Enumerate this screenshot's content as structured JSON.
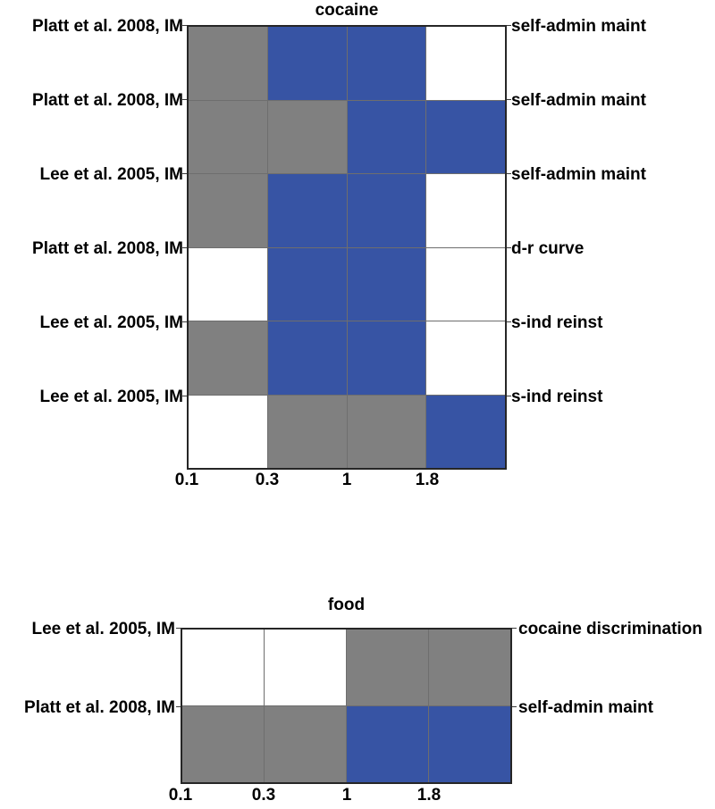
{
  "palette": {
    "white": "#ffffff",
    "gray": "#808080",
    "blue": "#3754a4",
    "grid_line": "#6e6e6e",
    "border": "#262626",
    "text": "#000000",
    "background": "#ffffff"
  },
  "chart_data": [
    {
      "type": "heatmap",
      "title": "cocaine",
      "x_tick_labels": [
        "0.1",
        "0.3",
        "1",
        "1.8"
      ],
      "x_tick_alignment": "left-cell-edges",
      "row_label_alignment": "top-cell-edges",
      "grid": "on",
      "legend": "none",
      "rows": [
        {
          "left_label": "Platt et al. 2008, IM",
          "right_label": "self-admin maint",
          "cells": [
            "gray",
            "blue",
            "blue",
            "white"
          ]
        },
        {
          "left_label": "Platt et al. 2008, IM",
          "right_label": "self-admin maint",
          "cells": [
            "gray",
            "gray",
            "blue",
            "blue"
          ]
        },
        {
          "left_label": "Lee et al. 2005, IM",
          "right_label": "self-admin maint",
          "cells": [
            "gray",
            "blue",
            "blue",
            "white"
          ]
        },
        {
          "left_label": "Platt et al. 2008, IM",
          "right_label": "d-r curve",
          "cells": [
            "white",
            "blue",
            "blue",
            "white"
          ]
        },
        {
          "left_label": "Lee et al. 2005, IM",
          "right_label": "s-ind reinst",
          "cells": [
            "gray",
            "blue",
            "blue",
            "white"
          ]
        },
        {
          "left_label": "Lee et al. 2005, IM",
          "right_label": "s-ind reinst",
          "cells": [
            "white",
            "gray",
            "gray",
            "blue"
          ]
        }
      ]
    },
    {
      "type": "heatmap",
      "title": "food",
      "x_tick_labels": [
        "0.1",
        "0.3",
        "1",
        "1.8"
      ],
      "x_tick_alignment": "left-cell-edges",
      "row_label_alignment": "top-cell-edges",
      "grid": "on",
      "legend": "none",
      "rows": [
        {
          "left_label": "Lee et al. 2005, IM",
          "right_label": "cocaine discrimination",
          "cells": [
            "white",
            "white",
            "gray",
            "gray"
          ]
        },
        {
          "left_label": "Platt et al. 2008, IM",
          "right_label": "self-admin maint",
          "cells": [
            "gray",
            "gray",
            "blue",
            "blue"
          ]
        }
      ]
    }
  ]
}
